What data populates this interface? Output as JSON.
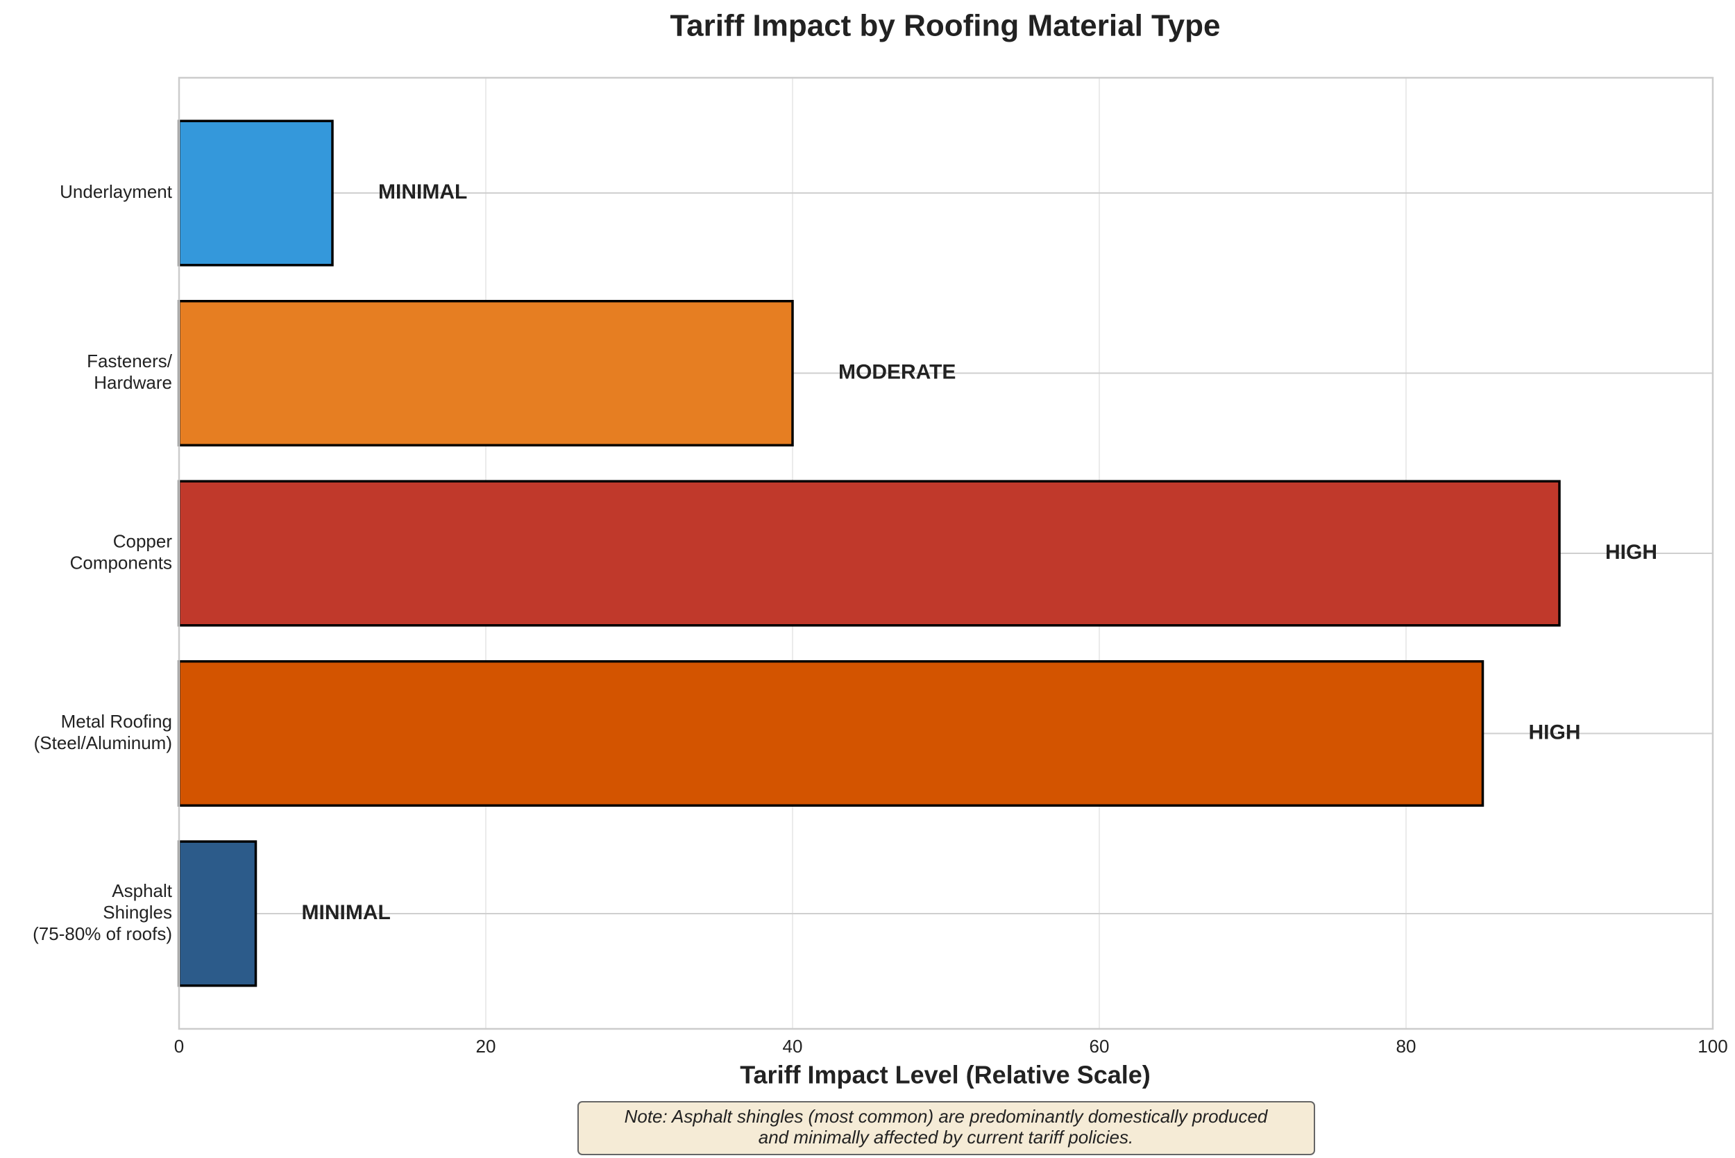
{
  "chart_data": {
    "type": "bar",
    "orientation": "horizontal",
    "title": "Tariff Impact by Roofing Material Type",
    "x_label": "Tariff Impact Level (Relative Scale)",
    "categories": [
      "Underlayment",
      "Fasteners/\nHardware",
      "Copper\nComponents",
      "Metal Roofing\n(Steel/Aluminum)",
      "Asphalt\nShingles\n(75-80% of roofs)"
    ],
    "values": [
      10,
      40,
      90,
      85,
      5
    ],
    "value_labels": [
      "MINIMAL",
      "MODERATE",
      "HIGH",
      "HIGH",
      "MINIMAL"
    ],
    "colors": [
      "#3498db",
      "#e67e22",
      "#c0392b",
      "#d35400",
      "#2c5b8a"
    ],
    "xlim": [
      0,
      100
    ],
    "xticks": [
      0,
      20,
      40,
      60,
      80,
      100
    ],
    "grid": true,
    "note": "Note: Asphalt shingles (most common) are predominantly domestically produced\nand minimally affected by current tariff policies."
  }
}
